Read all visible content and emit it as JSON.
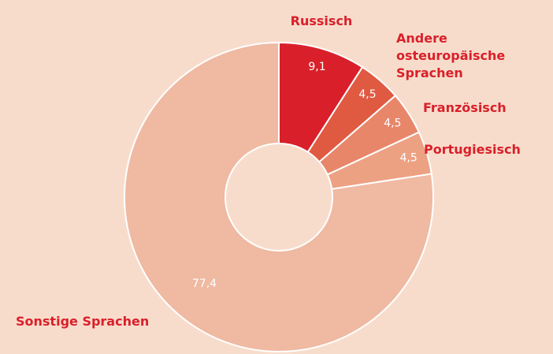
{
  "chart_data": {
    "type": "donut",
    "categories": [
      "Russisch",
      "Andere osteuropäische Sprachen",
      "Französisch",
      "Portugiesisch",
      "Sonstige Sprachen"
    ],
    "values": [
      9.1,
      4.5,
      4.5,
      4.5,
      77.4
    ],
    "value_labels": [
      "9,1",
      "4,5",
      "4,5",
      "4,5",
      "77,4"
    ],
    "colors": [
      "#d9202a",
      "#e05a42",
      "#e8866a",
      "#eda183",
      "#efb9a2"
    ]
  }
}
